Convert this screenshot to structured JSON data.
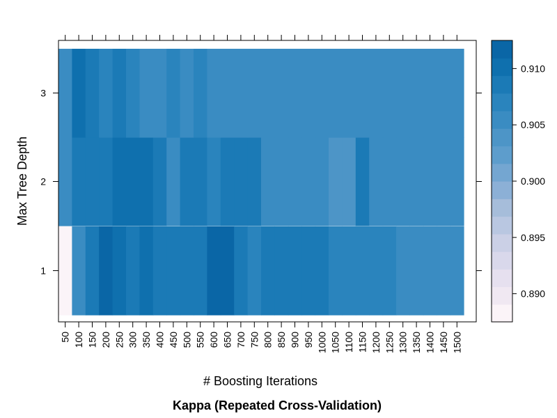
{
  "chart_data": {
    "type": "heatmap",
    "title": "Kappa (Repeated Cross-Validation)",
    "xlabel": "# Boosting Iterations",
    "ylabel": "Max Tree Depth",
    "x": [
      50,
      100,
      150,
      200,
      250,
      300,
      350,
      400,
      450,
      500,
      550,
      600,
      650,
      700,
      750,
      800,
      850,
      900,
      950,
      1000,
      1050,
      1100,
      1150,
      1200,
      1250,
      1300,
      1350,
      1400,
      1450,
      1500
    ],
    "y": [
      1,
      2,
      3
    ],
    "values": [
      [
        0.8885,
        0.9052,
        0.909,
        0.912,
        0.91,
        0.908,
        0.91,
        0.909,
        0.909,
        0.909,
        0.909,
        0.911,
        0.911,
        0.909,
        0.907,
        0.908,
        0.908,
        0.908,
        0.908,
        0.908,
        0.9075,
        0.9075,
        0.9075,
        0.9075,
        0.907,
        0.905,
        0.905,
        0.905,
        0.905,
        0.905
      ],
      [
        0.905,
        0.9085,
        0.9085,
        0.9085,
        0.91,
        0.91,
        0.91,
        0.908,
        0.905,
        0.908,
        0.908,
        0.907,
        0.908,
        0.908,
        0.908,
        0.905,
        0.905,
        0.905,
        0.905,
        0.905,
        0.9045,
        0.9045,
        0.909,
        0.9055,
        0.905,
        0.905,
        0.905,
        0.905,
        0.905,
        0.905
      ],
      [
        0.906,
        0.91,
        0.908,
        0.9065,
        0.908,
        0.9065,
        0.9055,
        0.9055,
        0.9065,
        0.9055,
        0.907,
        0.906,
        0.906,
        0.906,
        0.906,
        0.906,
        0.905,
        0.906,
        0.906,
        0.906,
        0.905,
        0.906,
        0.905,
        0.905,
        0.906,
        0.906,
        0.906,
        0.906,
        0.906,
        0.906
      ]
    ],
    "colorbar": {
      "min": 0.8875,
      "max": 0.9125,
      "ticks": [
        "0.890",
        "0.895",
        "0.900",
        "0.905",
        "0.910"
      ],
      "tick_values": [
        0.89,
        0.895,
        0.9,
        0.905,
        0.91
      ]
    },
    "colors": {
      "low": "#fdf5f9",
      "mid": "#b8c6e0",
      "high": "#0a67a8",
      "stops": [
        "#fbf4f8",
        "#f0e8f2",
        "#e6e0ef",
        "#d9d8eb",
        "#cbd0e6",
        "#b9c7e1",
        "#a6bdda",
        "#8cb0d6",
        "#74a6d1",
        "#5d9dcc",
        "#4d95c7",
        "#3a8cc2",
        "#2a84bd",
        "#1b7ab6",
        "#0f70ae",
        "#0a66a6"
      ]
    }
  }
}
